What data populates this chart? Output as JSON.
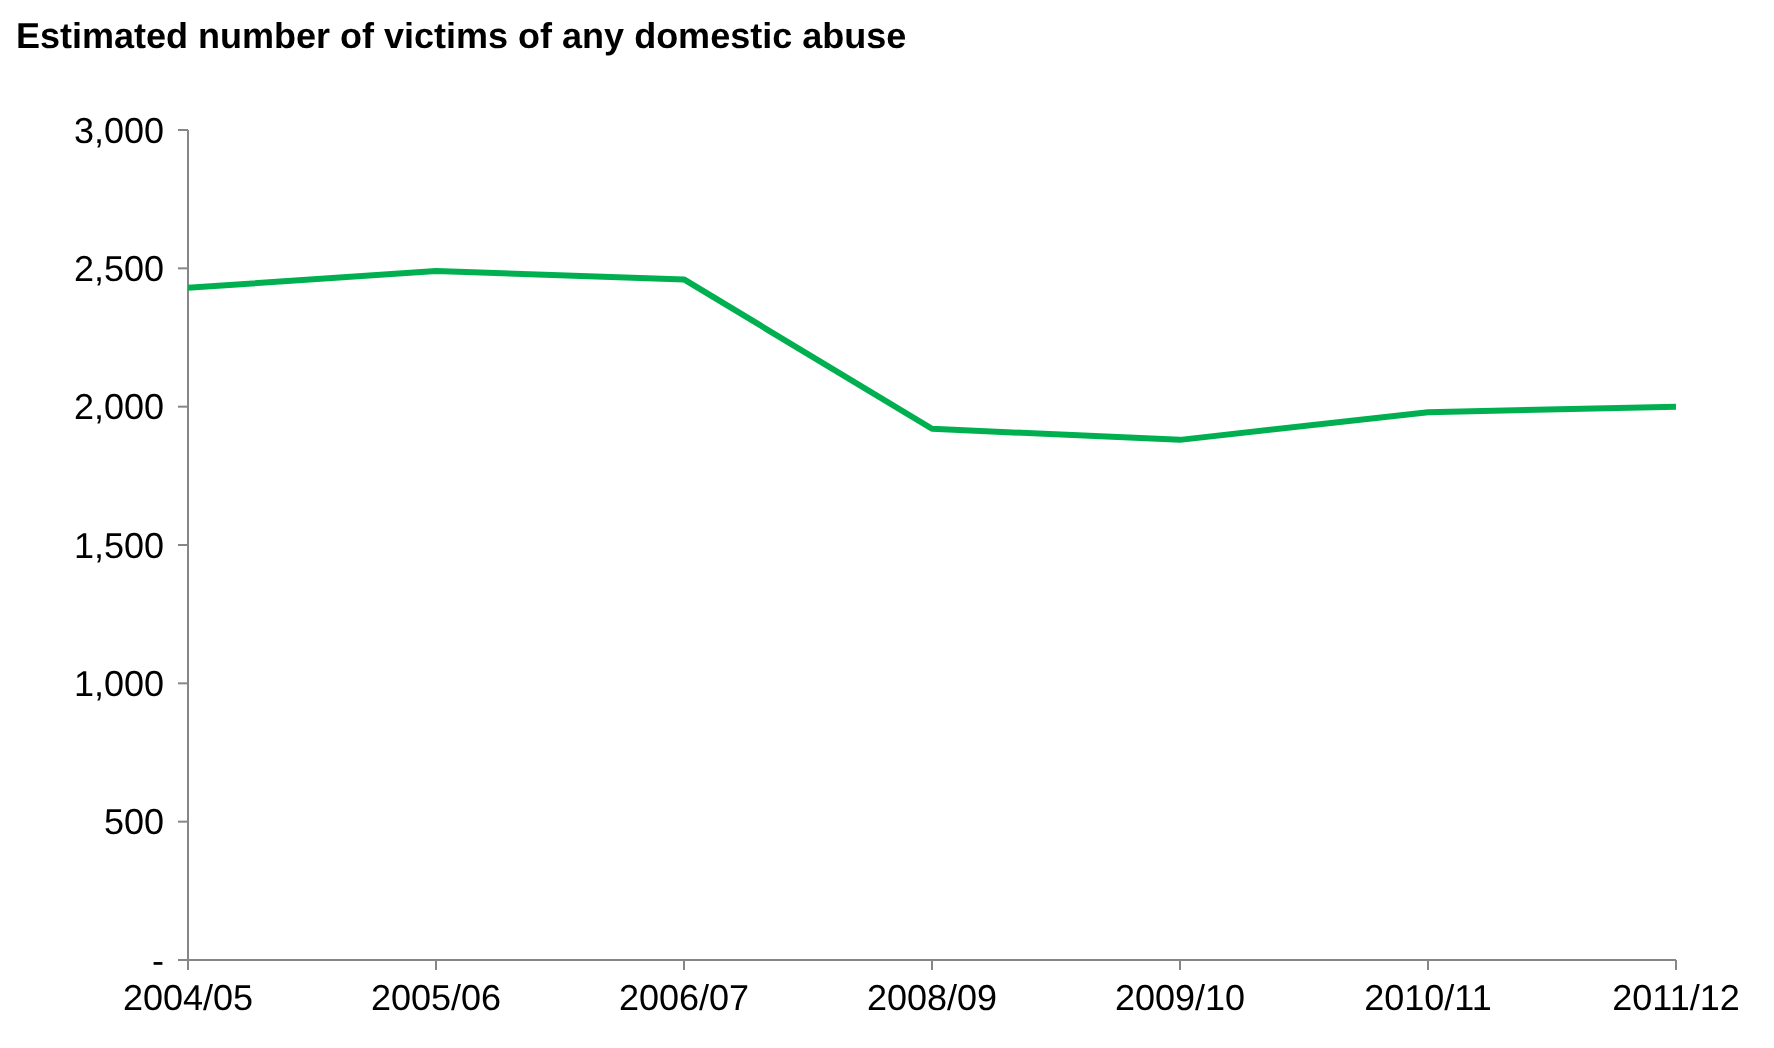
{
  "chart_data": {
    "type": "line",
    "title": "Estimated number of victims of any domestic abuse",
    "categories": [
      "2004/05",
      "2005/06",
      "2006/07",
      "2008/09",
      "2009/10",
      "2010/11",
      "2011/12"
    ],
    "series": [
      {
        "color": "#00b050",
        "values": [
          2430,
          2490,
          2460,
          1920,
          1880,
          1980,
          2000
        ]
      }
    ],
    "ylim": [
      0,
      3000
    ],
    "yticks": [
      {
        "value": 0,
        "label": "-"
      },
      {
        "value": 500,
        "label": "500"
      },
      {
        "value": 1000,
        "label": "1,000"
      },
      {
        "value": 1500,
        "label": "1,500"
      },
      {
        "value": 2000,
        "label": "2,000"
      },
      {
        "value": 2500,
        "label": "2,500"
      },
      {
        "value": 3000,
        "label": "3,000"
      }
    ],
    "grid": false,
    "marker": "none",
    "line_style": "solid"
  }
}
